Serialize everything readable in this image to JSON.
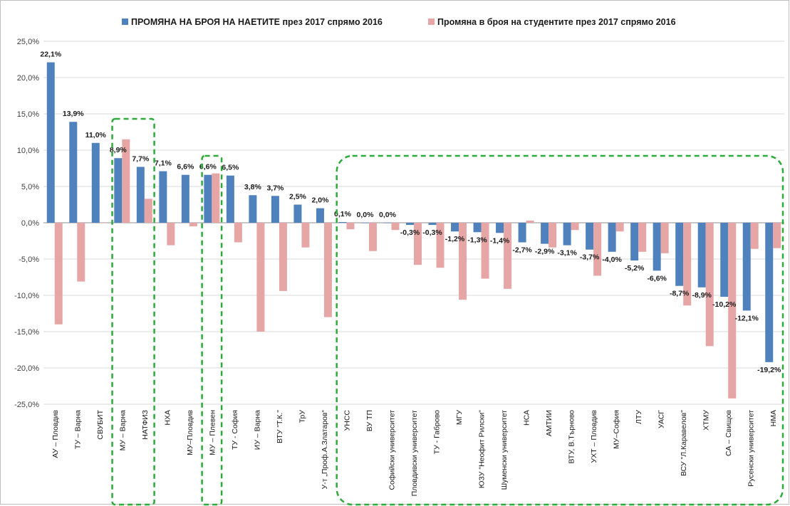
{
  "chart_data": {
    "type": "bar",
    "ylim": [
      -25,
      25
    ],
    "y_ticks": [
      "25,0%",
      "20,0%",
      "15,0%",
      "10,0%",
      "5,0%",
      "0,0%",
      "-5,0%",
      "-10,0%",
      "-15,0%",
      "-20,0%",
      "-25,0%"
    ],
    "grid": true,
    "legend_position": "top",
    "categories": [
      "АУ – Пловдив",
      "ТУ – Варна",
      "СВУБИТ",
      "МУ – Варна",
      "НАТФИЗ",
      "НХА",
      "МУ–Пловдив",
      "МУ – Плевен",
      "ТУ - София",
      "ИУ – Варна",
      "ВТУ \"Т.К.\"",
      "ТрУ",
      "У-т „Проф.А.Златаров“",
      "УНСС",
      "ВУ ТП",
      "Софийски университет",
      "Пловдивски университет",
      "ТУ - Габрово",
      "МГУ",
      "ЮЗУ \"Неофит Рилски\"",
      "Шуменски университет",
      "НСА",
      "АМТИИ",
      "ВТУ, В.Търново",
      "УХТ – Пловдив",
      "МУ–София",
      "ЛТУ",
      "УАСГ",
      "ВСУ \"Л.Каравелов\"",
      "ХТМУ",
      "СА – Свищов",
      "Русенски университет",
      "НМА"
    ],
    "series": [
      {
        "name": "ПРОМЯНА НА БРОЯ НА НАЕТИТЕ през 2017 спрямо 2016",
        "color": "#4f81bd",
        "values": [
          22.1,
          13.9,
          11.0,
          8.9,
          7.7,
          7.1,
          6.6,
          6.6,
          6.5,
          3.8,
          3.7,
          2.5,
          2.0,
          0.1,
          0.0,
          0.0,
          -0.3,
          -0.3,
          -1.2,
          -1.3,
          -1.4,
          -2.7,
          -2.9,
          -3.1,
          -3.7,
          -4.0,
          -5.2,
          -6.6,
          -8.7,
          -8.9,
          -10.2,
          -12.1,
          -19.2
        ],
        "labels": [
          "22,1%",
          "13,9%",
          "11,0%",
          "8,9%",
          "7,7%",
          "7,1%",
          "6,6%",
          "6,6%",
          "6,5%",
          "3,8%",
          "3,7%",
          "2,5%",
          "2,0%",
          "0,1%",
          "0,0%",
          "0,0%",
          "-0,3%",
          "-0,3%",
          "-1,2%",
          "-1,3%",
          "-1,4%",
          "-2,7%",
          "-2,9%",
          "-3,1%",
          "-3,7%",
          "-4,0%",
          "-5,2%",
          "-6,6%",
          "-8,7%",
          "-8,9%",
          "-10,2%",
          "-12,1%",
          "-19,2%"
        ]
      },
      {
        "name": "Промяна в броя на студентите през 2017 спрямо 2016",
        "color": "#e6a6a6",
        "values": [
          -14.0,
          -8.1,
          0.0,
          11.5,
          3.3,
          -3.1,
          -0.5,
          6.8,
          -2.7,
          -15.0,
          -9.4,
          -3.4,
          -13.0,
          -0.9,
          -3.9,
          -1.0,
          -5.8,
          -6.2,
          -10.6,
          -7.7,
          -9.1,
          0.3,
          -3.4,
          -1.0,
          -7.3,
          -1.2,
          -4.0,
          -4.2,
          -11.4,
          -17.0,
          -24.2,
          -3.6,
          -3.5
        ]
      }
    ],
    "highlight_groups": [
      {
        "from": "МУ – Варна",
        "to": "НАТФИЗ",
        "color": "#2eaa3a"
      },
      {
        "from": "МУ – Плевен",
        "to": "МУ – Плевен",
        "color": "#2eaa3a"
      },
      {
        "from": "УНСС",
        "to": "НМА",
        "color": "#2eaa3a"
      }
    ]
  }
}
